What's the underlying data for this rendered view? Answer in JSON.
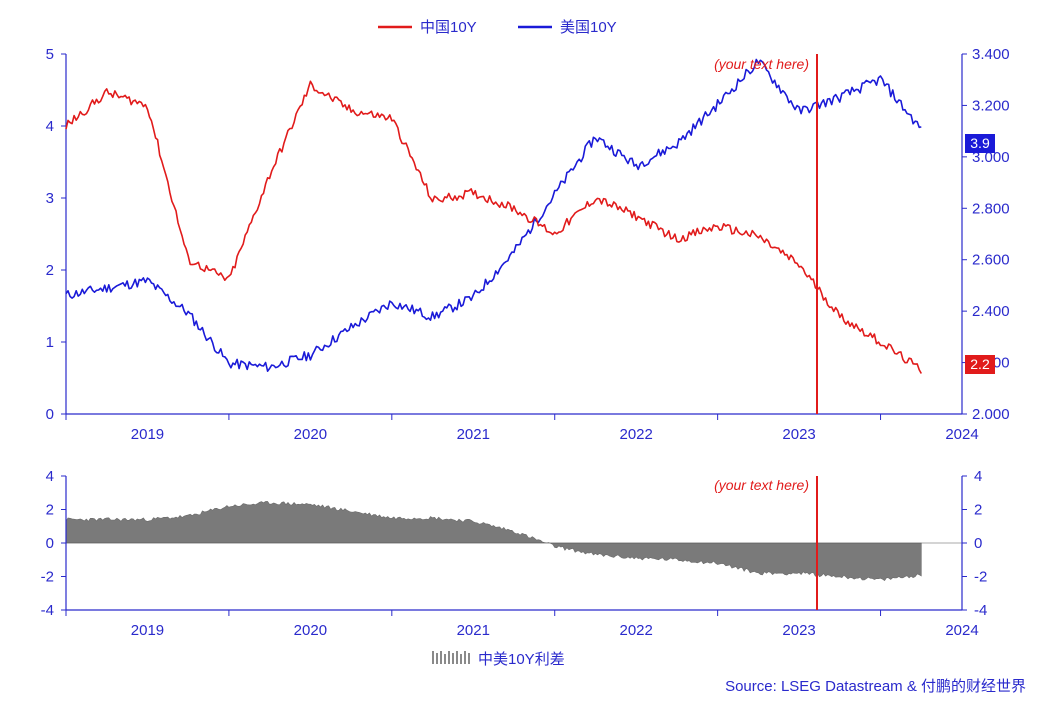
{
  "chart_data": [
    {
      "type": "line",
      "title": "",
      "legend": {
        "placement": "top-center",
        "entries": [
          "中国10Y",
          "美国10Y"
        ]
      },
      "x": [
        "2019-01",
        "2019-04",
        "2019-07",
        "2019-10",
        "2020-01",
        "2020-04",
        "2020-07",
        "2020-10",
        "2021-01",
        "2021-04",
        "2021-07",
        "2021-10",
        "2022-01",
        "2022-04",
        "2022-07",
        "2022-10",
        "2023-01",
        "2023-04",
        "2023-07",
        "2023-10",
        "2024-01",
        "2024-04"
      ],
      "x_ticks": [
        "2019",
        "2020",
        "2021",
        "2022",
        "2023",
        "2024"
      ],
      "y_left": {
        "range": [
          0,
          5
        ],
        "ticks": [
          "0",
          "1",
          "2",
          "3",
          "4",
          "5"
        ],
        "series": "美国10Y"
      },
      "y_right": {
        "range": [
          2.0,
          3.4
        ],
        "ticks": [
          "2.000",
          "2.200",
          "2.400",
          "2.600",
          "2.800",
          "3.000",
          "3.200",
          "3.400"
        ],
        "series": "中国10Y"
      },
      "series": [
        {
          "name": "中国10Y",
          "axis": "right",
          "color": "#e11b1b",
          "values": [
            3.12,
            3.25,
            3.2,
            2.6,
            2.52,
            2.93,
            3.28,
            3.18,
            3.15,
            2.83,
            2.86,
            2.8,
            2.7,
            2.84,
            2.77,
            2.68,
            2.73,
            2.69,
            2.58,
            2.38,
            2.28,
            2.17
          ]
        },
        {
          "name": "美国10Y",
          "axis": "left",
          "color": "#1a1ad8",
          "values": [
            1.65,
            1.75,
            1.85,
            1.4,
            0.7,
            0.65,
            0.82,
            1.2,
            1.55,
            1.35,
            1.62,
            2.25,
            3.05,
            3.85,
            3.45,
            3.75,
            4.3,
            4.9,
            4.2,
            4.4,
            4.65,
            3.95
          ]
        }
      ],
      "badges": [
        {
          "label": "3.9",
          "series": "美国10Y",
          "color": "#1a1ad8"
        },
        {
          "label": "2.2",
          "series": "中国10Y",
          "color": "#e11b1b"
        }
      ],
      "annotation": {
        "text": "(your text here)",
        "x": "2023-09",
        "color": "#e11b1b"
      }
    },
    {
      "type": "area",
      "legend": {
        "placement": "bottom-center",
        "entries": [
          "中美10Y利差"
        ]
      },
      "x": [
        "2019-01",
        "2019-04",
        "2019-07",
        "2019-10",
        "2020-01",
        "2020-04",
        "2020-07",
        "2020-10",
        "2021-01",
        "2021-04",
        "2021-07",
        "2021-10",
        "2022-01",
        "2022-04",
        "2022-07",
        "2022-10",
        "2023-01",
        "2023-04",
        "2023-07",
        "2023-10",
        "2024-01",
        "2024-04"
      ],
      "x_ticks": [
        "2019",
        "2020",
        "2021",
        "2022",
        "2023",
        "2024"
      ],
      "y_left": {
        "range": [
          -4,
          4
        ],
        "ticks": [
          "4",
          "2",
          "0",
          "-2",
          "-4"
        ]
      },
      "y_right": {
        "range": [
          -4,
          4
        ],
        "ticks": [
          "4",
          "2",
          "0",
          "-2",
          "-4"
        ]
      },
      "series": [
        {
          "name": "中美10Y利差",
          "color": "#7a7a7a",
          "values": [
            1.4,
            1.4,
            1.4,
            1.6,
            2.2,
            2.4,
            2.3,
            1.9,
            1.5,
            1.5,
            1.3,
            0.7,
            -0.2,
            -0.7,
            -0.9,
            -1.0,
            -1.2,
            -1.8,
            -1.8,
            -2.0,
            -2.2,
            -1.9
          ]
        }
      ],
      "annotation": {
        "text": "(your text here)",
        "x": "2023-09",
        "color": "#e11b1b"
      }
    }
  ],
  "source": "Source: LSEG Datastream & 付鹏的财经世界"
}
